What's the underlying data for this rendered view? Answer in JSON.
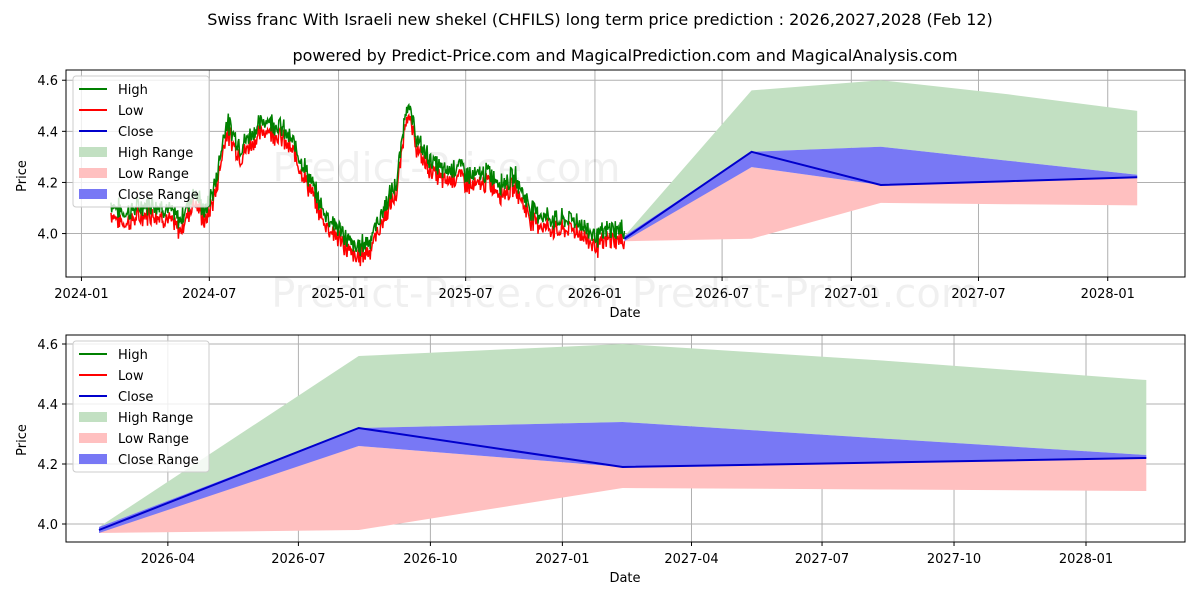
{
  "chart_data": {
    "title": "Swiss franc With Israeli new shekel (CHFILS) long term price prediction : 2026,2027,2028 (Feb 12)",
    "subtitle": "powered by Predict-Price.com and MagicalPrediction.com and MagicalAnalysis.com",
    "watermark": "Predict-Price.com",
    "colors": {
      "high": "#008000",
      "low": "#ff0000",
      "close": "#0000cc",
      "high_range": "#c2e0c2",
      "low_range": "#ffc0c0",
      "close_range": "#7878f5",
      "grid": "#b0b0b0"
    },
    "legend": {
      "placement": "top-left",
      "entries": [
        "High",
        "Low",
        "Close",
        "High Range",
        "Low Range",
        "Close Range"
      ]
    },
    "panels": [
      {
        "name": "full-history",
        "type": "line",
        "xlabel": "Date",
        "ylabel": "Price",
        "xlim": [
          "2023-12-10",
          "2028-04-20"
        ],
        "ylim": [
          3.83,
          4.64
        ],
        "xticks": [
          "2024-01",
          "2024-07",
          "2025-01",
          "2025-07",
          "2026-01",
          "2026-07",
          "2027-01",
          "2027-07",
          "2028-01"
        ],
        "yticks": [
          "4.0",
          "4.2",
          "4.4",
          "4.6"
        ]
      },
      {
        "name": "forecast-zoom",
        "type": "line",
        "xlabel": "Date",
        "ylabel": "Price",
        "xlim": [
          "2026-01-20",
          "2028-03-10"
        ],
        "ylim": [
          3.94,
          4.63
        ],
        "xticks": [
          "2026-04",
          "2026-07",
          "2026-10",
          "2027-01",
          "2027-04",
          "2027-07",
          "2027-10",
          "2028-01"
        ],
        "yticks": [
          "4.0",
          "4.2",
          "4.4",
          "4.6"
        ]
      }
    ],
    "history_close": [
      [
        "2024-02-12",
        4.1
      ],
      [
        "2024-03-01",
        4.06
      ],
      [
        "2024-03-20",
        4.08
      ],
      [
        "2024-04-10",
        4.1
      ],
      [
        "2024-05-01",
        4.08
      ],
      [
        "2024-05-20",
        4.03
      ],
      [
        "2024-06-10",
        4.15
      ],
      [
        "2024-06-25",
        4.06
      ],
      [
        "2024-07-10",
        4.18
      ],
      [
        "2024-07-25",
        4.42
      ],
      [
        "2024-08-15",
        4.32
      ],
      [
        "2024-09-01",
        4.38
      ],
      [
        "2024-09-20",
        4.43
      ],
      [
        "2024-10-10",
        4.4
      ],
      [
        "2024-11-01",
        4.32
      ],
      [
        "2024-11-20",
        4.2
      ],
      [
        "2024-12-10",
        4.07
      ],
      [
        "2025-01-01",
        4.0
      ],
      [
        "2025-01-25",
        3.92
      ],
      [
        "2025-02-15",
        3.96
      ],
      [
        "2025-03-10",
        4.1
      ],
      [
        "2025-03-25",
        4.18
      ],
      [
        "2025-04-08",
        4.5
      ],
      [
        "2025-04-25",
        4.33
      ],
      [
        "2025-05-15",
        4.26
      ],
      [
        "2025-06-01",
        4.22
      ],
      [
        "2025-06-20",
        4.25
      ],
      [
        "2025-07-10",
        4.2
      ],
      [
        "2025-08-01",
        4.22
      ],
      [
        "2025-08-20",
        4.18
      ],
      [
        "2025-09-10",
        4.2
      ],
      [
        "2025-10-01",
        4.08
      ],
      [
        "2025-10-20",
        4.05
      ],
      [
        "2025-11-10",
        4.03
      ],
      [
        "2025-12-01",
        4.04
      ],
      [
        "2025-12-20",
        4.0
      ],
      [
        "2026-01-05",
        3.97
      ],
      [
        "2026-01-25",
        4.0
      ],
      [
        "2026-02-12",
        3.99
      ]
    ],
    "history_spread": 0.04,
    "forecast": {
      "dates": [
        "2026-02-12",
        "2026-08-12",
        "2027-02-12",
        "2027-08-12",
        "2028-02-12"
      ],
      "close": [
        3.98,
        4.32,
        4.19,
        4.205,
        4.22
      ],
      "high_range_upper": [
        3.99,
        4.56,
        4.6,
        4.545,
        4.48
      ],
      "low_range_lower": [
        3.97,
        3.98,
        4.12,
        4.115,
        4.11
      ],
      "close_range_upper": [
        3.99,
        4.32,
        4.34,
        4.285,
        4.23
      ],
      "close_range_lower": [
        3.97,
        4.26,
        4.19,
        4.205,
        4.22
      ],
      "low_range_upper": [
        3.98,
        4.26,
        4.19,
        4.205,
        4.22
      ]
    }
  }
}
